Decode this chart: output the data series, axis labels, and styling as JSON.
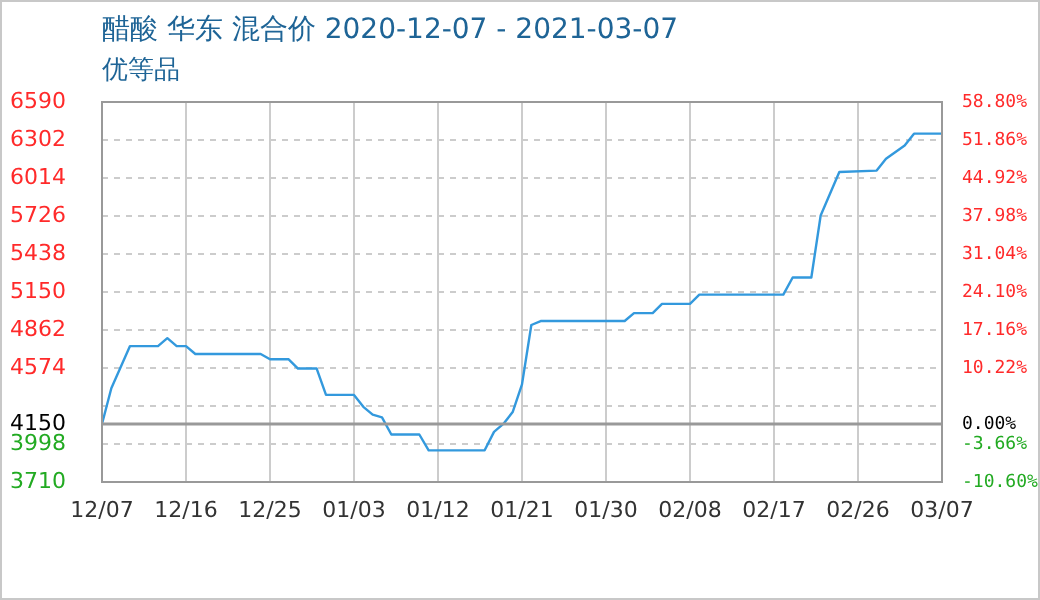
{
  "chart_data": {
    "type": "line",
    "title": "醋酸 华东 混合价 2020-12-07 - 2021-03-07",
    "subtitle": "优等品",
    "x": [
      "2020-12-07",
      "2020-12-08",
      "2020-12-10",
      "2020-12-13",
      "2020-12-14",
      "2020-12-15",
      "2020-12-16",
      "2020-12-17",
      "2020-12-22",
      "2020-12-24",
      "2020-12-25",
      "2020-12-27",
      "2020-12-28",
      "2020-12-30",
      "2020-12-31",
      "2021-01-03",
      "2021-01-04",
      "2021-01-05",
      "2021-01-06",
      "2021-01-07",
      "2021-01-10",
      "2021-01-11",
      "2021-01-17",
      "2021-01-18",
      "2021-01-19",
      "2021-01-20",
      "2021-01-21",
      "2021-01-22",
      "2021-01-23",
      "2021-02-01",
      "2021-02-02",
      "2021-02-04",
      "2021-02-05",
      "2021-02-08",
      "2021-02-09",
      "2021-02-18",
      "2021-02-19",
      "2021-02-21",
      "2021-02-22",
      "2021-02-24",
      "2021-02-28",
      "2021-03-01",
      "2021-03-03",
      "2021-03-04",
      "2021-03-07"
    ],
    "series": [
      {
        "color": "#3399dd",
        "values": [
          4150,
          4420,
          4740,
          4740,
          4800,
          4740,
          4740,
          4680,
          4680,
          4680,
          4640,
          4640,
          4570,
          4570,
          4370,
          4370,
          4280,
          4220,
          4200,
          4070,
          4070,
          3950,
          3950,
          4090,
          4150,
          4240,
          4450,
          4900,
          4930,
          4930,
          4990,
          4990,
          5060,
          5060,
          5130,
          5130,
          5260,
          5260,
          5730,
          6060,
          6070,
          6160,
          6260,
          6350,
          6350
        ]
      }
    ],
    "xlim": [
      "2020-12-07",
      "2021-03-07"
    ],
    "xticks": [
      {
        "value": "2020-12-07",
        "label": "12/07"
      },
      {
        "value": "2020-12-16",
        "label": "12/16"
      },
      {
        "value": "2020-12-25",
        "label": "12/25"
      },
      {
        "value": "2021-01-03",
        "label": "01/03"
      },
      {
        "value": "2021-01-12",
        "label": "01/12"
      },
      {
        "value": "2021-01-21",
        "label": "01/21"
      },
      {
        "value": "2021-01-30",
        "label": "01/30"
      },
      {
        "value": "2021-02-08",
        "label": "02/08"
      },
      {
        "value": "2021-02-17",
        "label": "02/17"
      },
      {
        "value": "2021-02-26",
        "label": "02/26"
      },
      {
        "value": "2021-03-07",
        "label": "03/07"
      }
    ],
    "ylim": [
      3710,
      6590
    ],
    "yticks": [
      3710,
      3998,
      4150,
      {
        "value": 4286,
        "label": null
      },
      4574,
      4862,
      5150,
      5438,
      5726,
      6014,
      6302,
      6590
    ],
    "y2lim": [
      -10.6,
      58.8
    ],
    "y2ticks": [
      {
        "value": -10.6,
        "label": "-10.60%"
      },
      {
        "value": -3.66,
        "label": "-3.66%"
      },
      {
        "value": 0,
        "label": "0.00%"
      },
      {
        "value": 10.22,
        "label": "10.22%"
      },
      {
        "value": 17.16,
        "label": "17.16%"
      },
      {
        "value": 24.1,
        "label": "24.10%"
      },
      {
        "value": 31.04,
        "label": "31.04%"
      },
      {
        "value": 37.98,
        "label": "37.98%"
      },
      {
        "value": 44.92,
        "label": "44.92%"
      },
      {
        "value": 51.86,
        "label": "51.86%"
      },
      {
        "value": 58.8,
        "label": "58.80%"
      }
    ],
    "ref_lines": [
      {
        "axis": "y",
        "value": 4150,
        "color": "#999999"
      }
    ],
    "grid": true,
    "legend": false,
    "marker": "none",
    "line_style": "solid"
  }
}
